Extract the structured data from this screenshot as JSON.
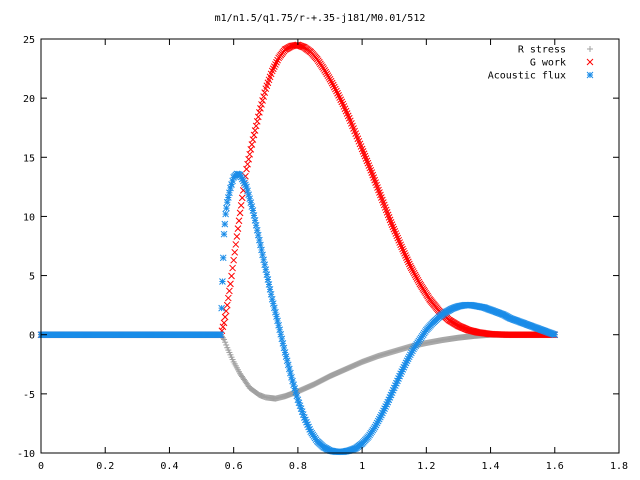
{
  "chart_data": {
    "type": "scatter",
    "title": "m1/n1.5/q1.75/r-+.35-j181/M0.01/512",
    "xlabel": "",
    "ylabel": "",
    "xlim": [
      0,
      1.8
    ],
    "ylim": [
      -10,
      25
    ],
    "x_ticks": [
      "0",
      "0.2",
      "0.4",
      "0.6",
      "0.8",
      "1",
      "1.2",
      "1.4",
      "1.6",
      "1.8"
    ],
    "y_ticks": [
      "-10",
      "-5",
      "0",
      "5",
      "10",
      "15",
      "20",
      "25"
    ],
    "grid": false,
    "legend_position": "top-right",
    "series": [
      {
        "name": "R stress",
        "marker": "plus",
        "color": "#a0a0a0",
        "x": [
          0.0,
          0.1,
          0.2,
          0.3,
          0.4,
          0.5,
          0.56,
          0.57,
          0.58,
          0.6,
          0.62,
          0.65,
          0.68,
          0.7,
          0.73,
          0.76,
          0.8,
          0.85,
          0.9,
          0.95,
          1.0,
          1.05,
          1.1,
          1.15,
          1.2,
          1.25,
          1.3,
          1.35,
          1.4,
          1.45,
          1.5,
          1.55,
          1.6
        ],
        "y": [
          0,
          0,
          0,
          0,
          0,
          0,
          0,
          -0.4,
          -1.1,
          -2.3,
          -3.3,
          -4.5,
          -5.1,
          -5.3,
          -5.4,
          -5.2,
          -4.8,
          -4.2,
          -3.5,
          -2.9,
          -2.3,
          -1.8,
          -1.4,
          -1.0,
          -0.7,
          -0.45,
          -0.25,
          -0.1,
          0,
          0,
          0,
          0,
          0
        ]
      },
      {
        "name": "G work",
        "marker": "cross",
        "color": "#ff0000",
        "x": [
          0.0,
          0.1,
          0.2,
          0.3,
          0.4,
          0.5,
          0.56,
          0.57,
          0.58,
          0.59,
          0.6,
          0.61,
          0.62,
          0.63,
          0.64,
          0.66,
          0.68,
          0.7,
          0.72,
          0.74,
          0.76,
          0.78,
          0.8,
          0.82,
          0.84,
          0.86,
          0.88,
          0.9,
          0.92,
          0.94,
          0.96,
          0.98,
          1.0,
          1.03,
          1.06,
          1.09,
          1.12,
          1.15,
          1.18,
          1.21,
          1.24,
          1.27,
          1.3,
          1.33,
          1.36,
          1.4,
          1.45,
          1.5,
          1.55,
          1.6
        ],
        "y": [
          0,
          0,
          0,
          0,
          0,
          0,
          0,
          1.0,
          2.5,
          4.3,
          6.3,
          8.3,
          10.3,
          12.2,
          14.0,
          16.5,
          18.8,
          20.8,
          22.3,
          23.4,
          24.1,
          24.4,
          24.5,
          24.3,
          23.9,
          23.3,
          22.5,
          21.6,
          20.6,
          19.5,
          18.3,
          17.0,
          15.7,
          13.7,
          11.6,
          9.5,
          7.6,
          5.8,
          4.3,
          3.0,
          2.0,
          1.25,
          0.75,
          0.4,
          0.2,
          0.05,
          0,
          0,
          0,
          0
        ]
      },
      {
        "name": "Acoustic flux",
        "marker": "star",
        "color": "#1a8ce8",
        "x": [
          0.0,
          0.1,
          0.2,
          0.3,
          0.4,
          0.5,
          0.56,
          0.565,
          0.57,
          0.575,
          0.58,
          0.59,
          0.6,
          0.61,
          0.62,
          0.64,
          0.66,
          0.68,
          0.7,
          0.72,
          0.74,
          0.76,
          0.78,
          0.8,
          0.82,
          0.84,
          0.86,
          0.88,
          0.9,
          0.92,
          0.94,
          0.96,
          0.98,
          1.0,
          1.02,
          1.04,
          1.06,
          1.08,
          1.1,
          1.12,
          1.14,
          1.16,
          1.18,
          1.2,
          1.22,
          1.24,
          1.26,
          1.28,
          1.3,
          1.32,
          1.34,
          1.36,
          1.38,
          1.4,
          1.42,
          1.44,
          1.46,
          1.48,
          1.5,
          1.52,
          1.54,
          1.56,
          1.58,
          1.6
        ],
        "y": [
          0,
          0,
          0,
          0,
          0,
          0,
          0,
          4.5,
          8.5,
          10.2,
          11.2,
          12.4,
          13.3,
          13.6,
          13.5,
          12.5,
          10.5,
          8.0,
          5.5,
          3.0,
          0.8,
          -1.5,
          -3.6,
          -5.5,
          -7.0,
          -8.2,
          -9.0,
          -9.5,
          -9.8,
          -9.9,
          -9.9,
          -9.8,
          -9.6,
          -9.2,
          -8.6,
          -7.8,
          -6.8,
          -5.7,
          -4.5,
          -3.3,
          -2.2,
          -1.2,
          -0.4,
          0.4,
          1.0,
          1.5,
          1.9,
          2.2,
          2.4,
          2.5,
          2.5,
          2.4,
          2.3,
          2.1,
          1.9,
          1.7,
          1.4,
          1.2,
          1.0,
          0.8,
          0.6,
          0.4,
          0.2,
          0.0
        ]
      }
    ]
  }
}
